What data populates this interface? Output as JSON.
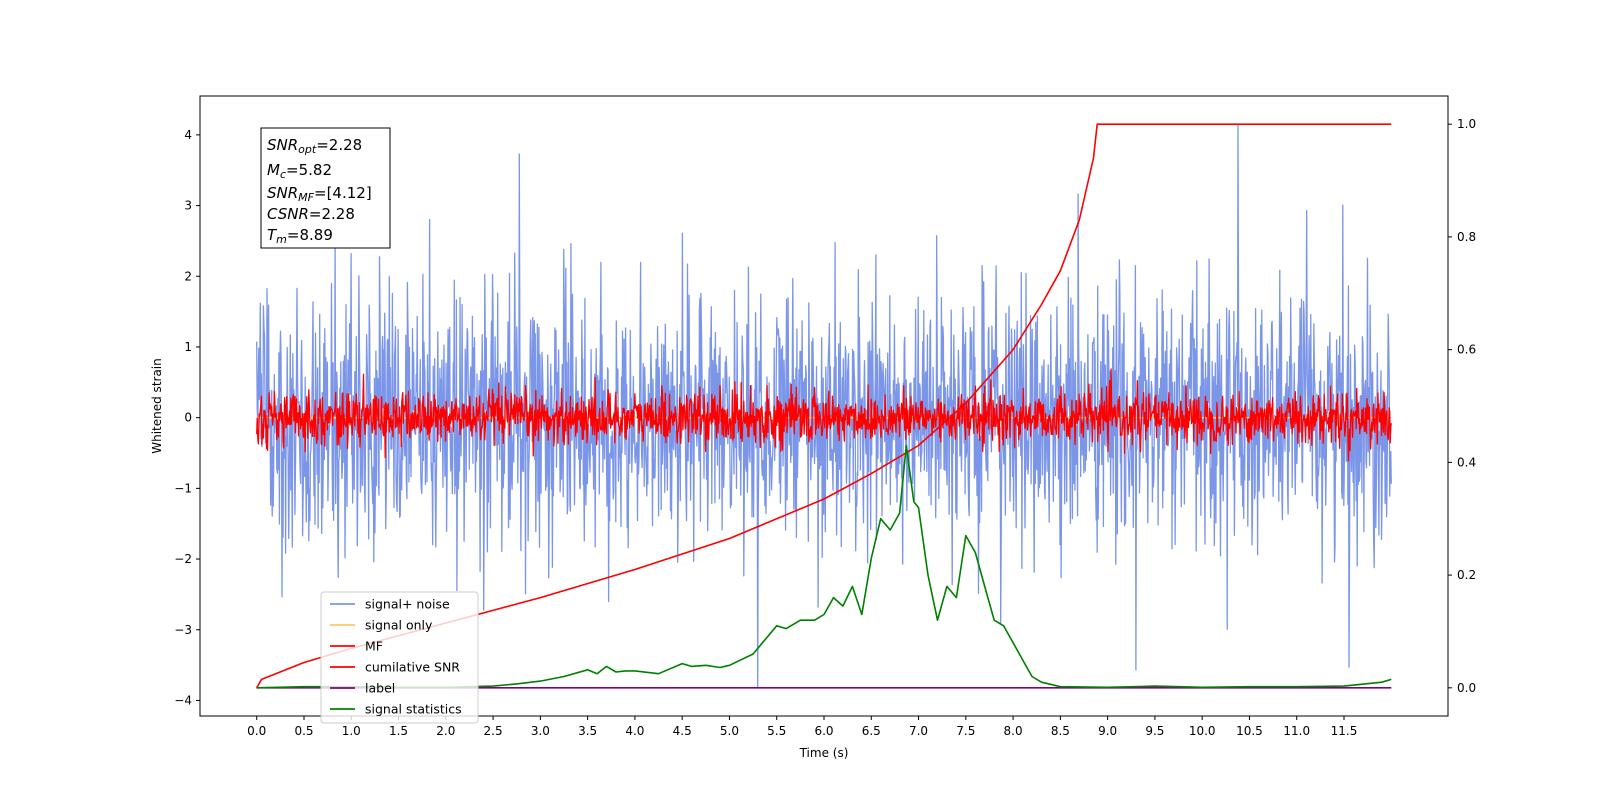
{
  "chart_data": {
    "type": "line",
    "xlabel": "Time (s)",
    "ylabel": "Whitened strain",
    "xlim": [
      -0.6,
      12.6
    ],
    "ylim_left": [
      -4.22,
      4.55
    ],
    "ylim_right": [
      -0.05,
      1.05
    ],
    "x_ticks": [
      0.0,
      0.5,
      1.0,
      1.5,
      2.0,
      2.5,
      3.0,
      3.5,
      4.0,
      4.5,
      5.0,
      5.5,
      6.0,
      6.5,
      7.0,
      7.5,
      8.0,
      8.5,
      9.0,
      9.5,
      10.0,
      10.5,
      11.0,
      11.5
    ],
    "x_tick_labels": [
      "0.0",
      "0.5",
      "1.0",
      "1.5",
      "2.0",
      "2.5",
      "3.0",
      "3.5",
      "4.0",
      "4.5",
      "5.0",
      "5.5",
      "6.0",
      "6.5",
      "7.0",
      "7.5",
      "8.0",
      "8.5",
      "9.0",
      "9.5",
      "10.0",
      "10.5",
      "11.0",
      "11.5"
    ],
    "y_left_ticks": [
      -4,
      -3,
      -2,
      -1,
      0,
      1,
      2,
      3,
      4
    ],
    "y_left_tick_labels": [
      "−4",
      "−3",
      "−2",
      "−1",
      "0",
      "1",
      "2",
      "3",
      "4"
    ],
    "y_right_ticks": [
      0.0,
      0.2,
      0.4,
      0.6,
      0.8,
      1.0
    ],
    "y_right_tick_labels": [
      "0.0",
      "0.2",
      "0.4",
      "0.6",
      "0.8",
      "1.0"
    ],
    "grid": false,
    "legend_position": "lower-left",
    "annotation": [
      {
        "sym": "SNR",
        "sub": "opt",
        "value": "=2.28"
      },
      {
        "sym": "M",
        "sub": "c",
        "value": "=5.82"
      },
      {
        "sym": "SNR",
        "sub": "MF",
        "value": "=[4.12]"
      },
      {
        "sym": "CSNR",
        "sub": "",
        "value": "=2.28"
      },
      {
        "sym": "T",
        "sub": "m",
        "value": "=8.89"
      }
    ],
    "series": [
      {
        "name": "signal+ noise",
        "axis": "left",
        "color": "#7b96e8",
        "kind": "noise",
        "t_range": [
          0.0,
          12.0
        ],
        "std": 0.9,
        "spikes": [
          [
            5.3,
            -3.82
          ],
          [
            10.38,
            4.15
          ],
          [
            2.78,
            3.73
          ],
          [
            9.3,
            -3.57
          ],
          [
            11.55,
            -3.53
          ]
        ]
      },
      {
        "name": "signal only",
        "axis": "left",
        "color": "#ffc966",
        "kind": "flat",
        "t_range": [
          0.0,
          12.0
        ],
        "value": 0.0
      },
      {
        "name": "MF",
        "axis": "left",
        "color": "#ff0000",
        "kind": "noise",
        "t_range": [
          0.0,
          12.0
        ],
        "std": 0.18
      },
      {
        "name": "cumilative SNR",
        "axis": "right",
        "color": "#ff0000",
        "kind": "curve",
        "x": [
          0.0,
          0.05,
          0.5,
          1.0,
          2.0,
          3.0,
          4.0,
          5.0,
          6.0,
          6.5,
          7.0,
          7.5,
          8.0,
          8.3,
          8.5,
          8.7,
          8.85,
          8.89,
          9.0,
          12.0
        ],
        "y": [
          0.0,
          0.015,
          0.045,
          0.07,
          0.115,
          0.16,
          0.21,
          0.265,
          0.335,
          0.38,
          0.43,
          0.505,
          0.6,
          0.68,
          0.74,
          0.83,
          0.94,
          1.0,
          1.0,
          1.0
        ]
      },
      {
        "name": "label",
        "axis": "right",
        "color": "#800080",
        "kind": "curve",
        "x": [
          0.0,
          12.0
        ],
        "y": [
          0.0,
          0.0
        ]
      },
      {
        "name": "signal statistics",
        "axis": "right",
        "color": "#008000",
        "kind": "curve",
        "x": [
          0.0,
          0.5,
          1.0,
          1.5,
          2.0,
          2.5,
          2.75,
          3.0,
          3.25,
          3.5,
          3.6,
          3.7,
          3.8,
          3.9,
          4.0,
          4.25,
          4.5,
          4.6,
          4.75,
          4.9,
          5.0,
          5.25,
          5.5,
          5.6,
          5.75,
          5.9,
          6.0,
          6.1,
          6.2,
          6.3,
          6.4,
          6.5,
          6.6,
          6.7,
          6.8,
          6.87,
          6.95,
          7.0,
          7.1,
          7.2,
          7.3,
          7.4,
          7.5,
          7.6,
          7.7,
          7.8,
          7.9,
          8.0,
          8.1,
          8.2,
          8.3,
          8.5,
          9.0,
          9.5,
          10.0,
          10.5,
          11.0,
          11.5,
          11.9,
          12.0
        ],
        "y": [
          0.0,
          0.002,
          0.002,
          0.001,
          0.001,
          0.003,
          0.007,
          0.012,
          0.02,
          0.032,
          0.025,
          0.038,
          0.028,
          0.03,
          0.03,
          0.025,
          0.043,
          0.038,
          0.04,
          0.036,
          0.04,
          0.06,
          0.11,
          0.105,
          0.12,
          0.12,
          0.13,
          0.16,
          0.145,
          0.18,
          0.13,
          0.23,
          0.3,
          0.28,
          0.31,
          0.43,
          0.33,
          0.32,
          0.2,
          0.12,
          0.18,
          0.16,
          0.27,
          0.24,
          0.18,
          0.12,
          0.11,
          0.08,
          0.05,
          0.02,
          0.01,
          0.002,
          0.001,
          0.003,
          0.001,
          0.002,
          0.002,
          0.003,
          0.01,
          0.015
        ]
      }
    ]
  }
}
